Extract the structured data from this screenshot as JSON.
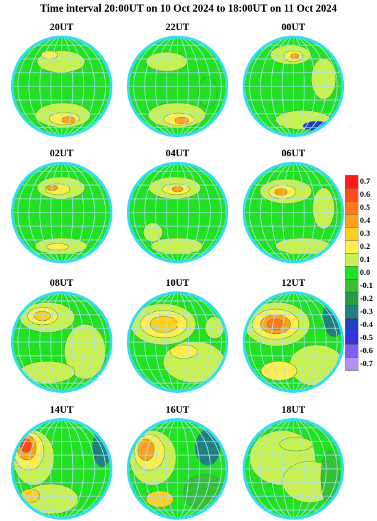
{
  "title": "Time interval 20:00UT on 10 Oct 2024 to 18:00UT on 11 Oct 2024",
  "panels": [
    {
      "label": "20UT"
    },
    {
      "label": "22UT"
    },
    {
      "label": "00UT"
    },
    {
      "label": "02UT"
    },
    {
      "label": "04UT"
    },
    {
      "label": "06UT"
    },
    {
      "label": "08UT"
    },
    {
      "label": "10UT"
    },
    {
      "label": "12UT"
    },
    {
      "label": "14UT"
    },
    {
      "label": "16UT"
    },
    {
      "label": "18UT"
    }
  ],
  "colorbar": {
    "labels": [
      "0.7",
      "0.6",
      "0.5",
      "0.4",
      "0.3",
      "0.2",
      "0.1",
      "0.0",
      "-0.1",
      "-0.2",
      "-0.3",
      "-0.4",
      "-0.5",
      "-0.6",
      "-0.7"
    ],
    "colors": [
      "#ff1a1a",
      "#ff4a1a",
      "#ff7a1a",
      "#ffa020",
      "#ffce1f",
      "#ffee50",
      "#c8f050",
      "#22e022",
      "#35c035",
      "#20a040",
      "#208080",
      "#2040c0",
      "#3a30e0",
      "#7a60f0",
      "#b090f5"
    ]
  },
  "colors": {
    "rim": "#33ddee",
    "grid": "#aadff2",
    "background": "#22e022"
  }
}
